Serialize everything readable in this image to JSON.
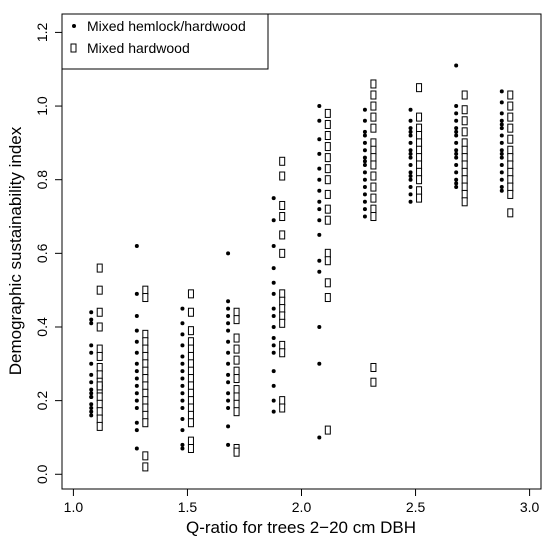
{
  "chart_data": {
    "type": "scatter",
    "xlabel": "Q-ratio for trees 2−20 cm DBH",
    "ylabel": "Demographic sustainability index",
    "xlim": [
      0.95,
      3.05
    ],
    "ylim": [
      -0.04,
      1.25
    ],
    "x_ticks": [
      "1.0",
      "1.5",
      "2.0",
      "2.5",
      "3.0"
    ],
    "y_ticks": [
      "0.0",
      "0.2",
      "0.4",
      "0.6",
      "0.8",
      "1.0",
      "1.2"
    ],
    "legend_position": "top-left",
    "grid": false,
    "series": [
      {
        "name": "Mixed hemlock/hardwood",
        "marker": "filled-circle",
        "points": [
          [
            1.1,
            0.44
          ],
          [
            1.1,
            0.42
          ],
          [
            1.1,
            0.41
          ],
          [
            1.1,
            0.35
          ],
          [
            1.1,
            0.33
          ],
          [
            1.1,
            0.3
          ],
          [
            1.1,
            0.27
          ],
          [
            1.1,
            0.25
          ],
          [
            1.1,
            0.23
          ],
          [
            1.1,
            0.22
          ],
          [
            1.1,
            0.21
          ],
          [
            1.1,
            0.19
          ],
          [
            1.1,
            0.18
          ],
          [
            1.1,
            0.17
          ],
          [
            1.1,
            0.16
          ],
          [
            1.1,
            0.21
          ],
          [
            1.3,
            0.62
          ],
          [
            1.3,
            0.49
          ],
          [
            1.3,
            0.43
          ],
          [
            1.3,
            0.39
          ],
          [
            1.3,
            0.36
          ],
          [
            1.3,
            0.33
          ],
          [
            1.3,
            0.3
          ],
          [
            1.3,
            0.28
          ],
          [
            1.3,
            0.26
          ],
          [
            1.3,
            0.24
          ],
          [
            1.3,
            0.22
          ],
          [
            1.3,
            0.2
          ],
          [
            1.3,
            0.18
          ],
          [
            1.3,
            0.14
          ],
          [
            1.3,
            0.12
          ],
          [
            1.3,
            0.07
          ],
          [
            1.5,
            0.45
          ],
          [
            1.5,
            0.41
          ],
          [
            1.5,
            0.38
          ],
          [
            1.5,
            0.35
          ],
          [
            1.5,
            0.32
          ],
          [
            1.5,
            0.3
          ],
          [
            1.5,
            0.28
          ],
          [
            1.5,
            0.26
          ],
          [
            1.5,
            0.24
          ],
          [
            1.5,
            0.22
          ],
          [
            1.5,
            0.2
          ],
          [
            1.5,
            0.18
          ],
          [
            1.5,
            0.15
          ],
          [
            1.5,
            0.12
          ],
          [
            1.5,
            0.08
          ],
          [
            1.5,
            0.07
          ],
          [
            1.7,
            0.6
          ],
          [
            1.7,
            0.47
          ],
          [
            1.7,
            0.45
          ],
          [
            1.7,
            0.43
          ],
          [
            1.7,
            0.41
          ],
          [
            1.7,
            0.39
          ],
          [
            1.7,
            0.36
          ],
          [
            1.7,
            0.33
          ],
          [
            1.7,
            0.3
          ],
          [
            1.7,
            0.27
          ],
          [
            1.7,
            0.25
          ],
          [
            1.7,
            0.22
          ],
          [
            1.7,
            0.2
          ],
          [
            1.7,
            0.18
          ],
          [
            1.7,
            0.13
          ],
          [
            1.7,
            0.08
          ],
          [
            1.9,
            0.75
          ],
          [
            1.9,
            0.69
          ],
          [
            1.9,
            0.62
          ],
          [
            1.9,
            0.56
          ],
          [
            1.9,
            0.52
          ],
          [
            1.9,
            0.49
          ],
          [
            1.9,
            0.45
          ],
          [
            1.9,
            0.43
          ],
          [
            1.9,
            0.4
          ],
          [
            1.9,
            0.37
          ],
          [
            1.9,
            0.35
          ],
          [
            1.9,
            0.33
          ],
          [
            1.9,
            0.28
          ],
          [
            1.9,
            0.24
          ],
          [
            1.9,
            0.2
          ],
          [
            1.9,
            0.17
          ],
          [
            2.1,
            1.0
          ],
          [
            2.1,
            0.96
          ],
          [
            2.1,
            0.91
          ],
          [
            2.1,
            0.87
          ],
          [
            2.1,
            0.83
          ],
          [
            2.1,
            0.8
          ],
          [
            2.1,
            0.77
          ],
          [
            2.1,
            0.74
          ],
          [
            2.1,
            0.72
          ],
          [
            2.1,
            0.69
          ],
          [
            2.1,
            0.65
          ],
          [
            2.1,
            0.58
          ],
          [
            2.1,
            0.55
          ],
          [
            2.1,
            0.4
          ],
          [
            2.1,
            0.3
          ],
          [
            2.1,
            0.1
          ],
          [
            2.3,
            0.99
          ],
          [
            2.3,
            0.96
          ],
          [
            2.3,
            0.93
          ],
          [
            2.3,
            0.9
          ],
          [
            2.3,
            0.88
          ],
          [
            2.3,
            0.86
          ],
          [
            2.3,
            0.84
          ],
          [
            2.3,
            0.82
          ],
          [
            2.3,
            0.8
          ],
          [
            2.3,
            0.78
          ],
          [
            2.3,
            0.76
          ],
          [
            2.3,
            0.74
          ],
          [
            2.3,
            0.72
          ],
          [
            2.3,
            0.7
          ],
          [
            2.3,
            0.92
          ],
          [
            2.3,
            0.85
          ],
          [
            2.5,
            0.99
          ],
          [
            2.5,
            0.96
          ],
          [
            2.5,
            0.94
          ],
          [
            2.5,
            0.92
          ],
          [
            2.5,
            0.9
          ],
          [
            2.5,
            0.88
          ],
          [
            2.5,
            0.86
          ],
          [
            2.5,
            0.84
          ],
          [
            2.5,
            0.82
          ],
          [
            2.5,
            0.8
          ],
          [
            2.5,
            0.78
          ],
          [
            2.5,
            0.76
          ],
          [
            2.5,
            0.74
          ],
          [
            2.5,
            0.93
          ],
          [
            2.5,
            0.87
          ],
          [
            2.5,
            0.81
          ],
          [
            2.7,
            1.11
          ],
          [
            2.7,
            1.0
          ],
          [
            2.7,
            0.98
          ],
          [
            2.7,
            0.96
          ],
          [
            2.7,
            0.94
          ],
          [
            2.7,
            0.92
          ],
          [
            2.7,
            0.9
          ],
          [
            2.7,
            0.88
          ],
          [
            2.7,
            0.86
          ],
          [
            2.7,
            0.84
          ],
          [
            2.7,
            0.82
          ],
          [
            2.7,
            0.8
          ],
          [
            2.7,
            0.78
          ],
          [
            2.7,
            0.93
          ],
          [
            2.7,
            0.87
          ],
          [
            2.7,
            0.79
          ],
          [
            2.9,
            1.04
          ],
          [
            2.9,
            1.01
          ],
          [
            2.9,
            0.98
          ],
          [
            2.9,
            0.96
          ],
          [
            2.9,
            0.94
          ],
          [
            2.9,
            0.92
          ],
          [
            2.9,
            0.9
          ],
          [
            2.9,
            0.88
          ],
          [
            2.9,
            0.86
          ],
          [
            2.9,
            0.84
          ],
          [
            2.9,
            0.82
          ],
          [
            2.9,
            0.8
          ],
          [
            2.9,
            0.78
          ],
          [
            2.9,
            0.77
          ],
          [
            2.9,
            0.95
          ],
          [
            2.9,
            0.87
          ]
        ]
      },
      {
        "name": "Mixed hardwood",
        "marker": "open-rectangle",
        "points": [
          [
            1.1,
            0.56
          ],
          [
            1.1,
            0.5
          ],
          [
            1.1,
            0.44
          ],
          [
            1.1,
            0.4
          ],
          [
            1.1,
            0.34
          ],
          [
            1.1,
            0.32
          ],
          [
            1.1,
            0.29
          ],
          [
            1.1,
            0.27
          ],
          [
            1.1,
            0.25
          ],
          [
            1.1,
            0.23
          ],
          [
            1.1,
            0.21
          ],
          [
            1.1,
            0.19
          ],
          [
            1.1,
            0.17
          ],
          [
            1.1,
            0.15
          ],
          [
            1.1,
            0.13
          ],
          [
            1.1,
            0.24
          ],
          [
            1.3,
            0.5
          ],
          [
            1.3,
            0.48
          ],
          [
            1.3,
            0.38
          ],
          [
            1.3,
            0.36
          ],
          [
            1.3,
            0.34
          ],
          [
            1.3,
            0.32
          ],
          [
            1.3,
            0.3
          ],
          [
            1.3,
            0.28
          ],
          [
            1.3,
            0.26
          ],
          [
            1.3,
            0.24
          ],
          [
            1.3,
            0.22
          ],
          [
            1.3,
            0.2
          ],
          [
            1.3,
            0.18
          ],
          [
            1.3,
            0.16
          ],
          [
            1.3,
            0.14
          ],
          [
            1.3,
            0.05
          ],
          [
            1.3,
            0.02
          ],
          [
            1.5,
            0.49
          ],
          [
            1.5,
            0.44
          ],
          [
            1.5,
            0.39
          ],
          [
            1.5,
            0.36
          ],
          [
            1.5,
            0.34
          ],
          [
            1.5,
            0.32
          ],
          [
            1.5,
            0.3
          ],
          [
            1.5,
            0.28
          ],
          [
            1.5,
            0.26
          ],
          [
            1.5,
            0.24
          ],
          [
            1.5,
            0.22
          ],
          [
            1.5,
            0.2
          ],
          [
            1.5,
            0.18
          ],
          [
            1.5,
            0.16
          ],
          [
            1.5,
            0.14
          ],
          [
            1.5,
            0.09
          ],
          [
            1.5,
            0.07
          ],
          [
            1.7,
            0.44
          ],
          [
            1.7,
            0.42
          ],
          [
            1.7,
            0.37
          ],
          [
            1.7,
            0.34
          ],
          [
            1.7,
            0.31
          ],
          [
            1.7,
            0.28
          ],
          [
            1.7,
            0.26
          ],
          [
            1.7,
            0.23
          ],
          [
            1.7,
            0.21
          ],
          [
            1.7,
            0.19
          ],
          [
            1.7,
            0.17
          ],
          [
            1.7,
            0.07
          ],
          [
            1.7,
            0.06
          ],
          [
            1.9,
            0.85
          ],
          [
            1.9,
            0.81
          ],
          [
            1.9,
            0.73
          ],
          [
            1.9,
            0.7
          ],
          [
            1.9,
            0.65
          ],
          [
            1.9,
            0.6
          ],
          [
            1.9,
            0.49
          ],
          [
            1.9,
            0.47
          ],
          [
            1.9,
            0.45
          ],
          [
            1.9,
            0.43
          ],
          [
            1.9,
            0.41
          ],
          [
            1.9,
            0.35
          ],
          [
            1.9,
            0.33
          ],
          [
            1.9,
            0.2
          ],
          [
            1.9,
            0.18
          ],
          [
            2.1,
            0.98
          ],
          [
            2.1,
            0.95
          ],
          [
            2.1,
            0.92
          ],
          [
            2.1,
            0.89
          ],
          [
            2.1,
            0.86
          ],
          [
            2.1,
            0.83
          ],
          [
            2.1,
            0.8
          ],
          [
            2.1,
            0.76
          ],
          [
            2.1,
            0.72
          ],
          [
            2.1,
            0.69
          ],
          [
            2.1,
            0.6
          ],
          [
            2.1,
            0.58
          ],
          [
            2.1,
            0.52
          ],
          [
            2.1,
            0.48
          ],
          [
            2.1,
            0.12
          ],
          [
            2.3,
            1.06
          ],
          [
            2.3,
            1.03
          ],
          [
            2.3,
            1.0
          ],
          [
            2.3,
            0.97
          ],
          [
            2.3,
            0.94
          ],
          [
            2.3,
            0.9
          ],
          [
            2.3,
            0.88
          ],
          [
            2.3,
            0.86
          ],
          [
            2.3,
            0.84
          ],
          [
            2.3,
            0.81
          ],
          [
            2.3,
            0.78
          ],
          [
            2.3,
            0.75
          ],
          [
            2.3,
            0.72
          ],
          [
            2.3,
            0.7
          ],
          [
            2.3,
            0.29
          ],
          [
            2.3,
            0.25
          ],
          [
            2.5,
            1.05
          ],
          [
            2.5,
            0.97
          ],
          [
            2.5,
            0.94
          ],
          [
            2.5,
            0.92
          ],
          [
            2.5,
            0.9
          ],
          [
            2.5,
            0.88
          ],
          [
            2.5,
            0.86
          ],
          [
            2.5,
            0.84
          ],
          [
            2.5,
            0.82
          ],
          [
            2.5,
            0.8
          ],
          [
            2.5,
            0.77
          ],
          [
            2.5,
            0.75
          ],
          [
            2.7,
            1.03
          ],
          [
            2.7,
            0.99
          ],
          [
            2.7,
            0.96
          ],
          [
            2.7,
            0.93
          ],
          [
            2.7,
            0.9
          ],
          [
            2.7,
            0.88
          ],
          [
            2.7,
            0.86
          ],
          [
            2.7,
            0.84
          ],
          [
            2.7,
            0.82
          ],
          [
            2.7,
            0.8
          ],
          [
            2.7,
            0.78
          ],
          [
            2.7,
            0.76
          ],
          [
            2.7,
            0.74
          ],
          [
            2.9,
            1.03
          ],
          [
            2.9,
            1.0
          ],
          [
            2.9,
            0.97
          ],
          [
            2.9,
            0.94
          ],
          [
            2.9,
            0.91
          ],
          [
            2.9,
            0.88
          ],
          [
            2.9,
            0.86
          ],
          [
            2.9,
            0.84
          ],
          [
            2.9,
            0.82
          ],
          [
            2.9,
            0.8
          ],
          [
            2.9,
            0.78
          ],
          [
            2.9,
            0.76
          ],
          [
            2.9,
            0.71
          ]
        ]
      }
    ],
    "colors": {
      "foreground": "#000000",
      "background": "#ffffff"
    }
  }
}
